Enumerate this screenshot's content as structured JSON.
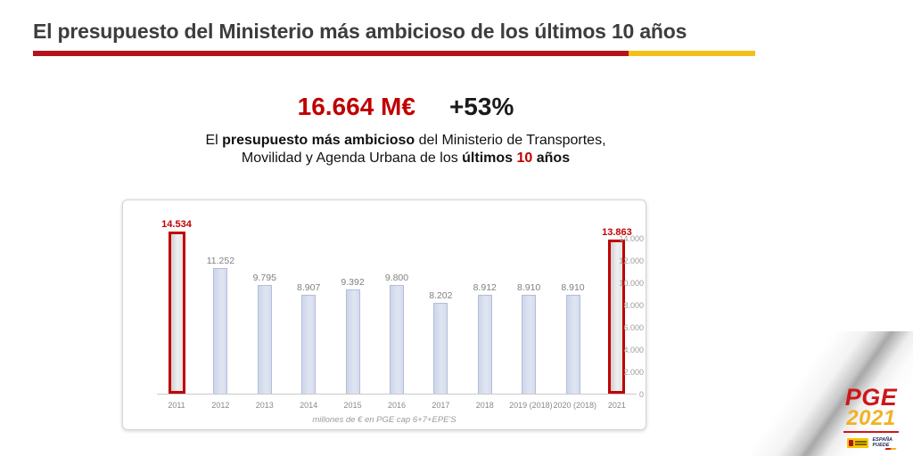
{
  "slide": {
    "title": "El presupuesto del Ministerio más ambicioso de los últimos 10 años",
    "accent_red": "#b5121b",
    "accent_yellow": "#f2c118"
  },
  "headline": {
    "amount": "16.664 M€",
    "delta": "+53%"
  },
  "subtitle": {
    "l1_normal1": "El ",
    "l1_bold": "presupuesto más ambicioso",
    "l1_normal2": " del Ministerio de Transportes,",
    "l2_normal1": "Movilidad y Agenda Urbana de los ",
    "l2_bold1": "últimos ",
    "l2_red": "10",
    "l2_bold2": " años"
  },
  "chart_data": {
    "type": "bar",
    "categories": [
      "2011",
      "2012",
      "2013",
      "2014",
      "2015",
      "2016",
      "2017",
      "2018",
      "2019 (2018)",
      "2020 (2018)",
      "2021"
    ],
    "values": [
      14534,
      11252,
      9795,
      8907,
      9392,
      9800,
      8202,
      8912,
      8910,
      8910,
      13863
    ],
    "labels": [
      "14.534",
      "11.252",
      "9.795",
      "8.907",
      "9.392",
      "9.800",
      "8.202",
      "8.912",
      "8.910",
      "8.910",
      "13.863"
    ],
    "highlighted": [
      0,
      10
    ],
    "title": "",
    "xlabel": "",
    "ylabel": "",
    "footnote": "millones de € en PGE cap 6+7+EPE'S",
    "ylim": [
      0,
      14000
    ],
    "yticks": [
      0,
      2000,
      4000,
      6000,
      8000,
      10000,
      12000,
      14000
    ],
    "ytick_labels": [
      "0",
      "2.000",
      "4.000",
      "6.000",
      "8.000",
      "10.000",
      "12.000",
      "14.000"
    ],
    "grid": false,
    "legend": false,
    "bar_color": "#cdd6ea",
    "bar_border": "#b3bdd6",
    "highlight_border": "#c00000",
    "highlight_fill": "#e6e6e6",
    "value_label_color": "#808080",
    "highlight_label_color": "#c00000"
  },
  "logo": {
    "pge": "PGE",
    "year": "2021",
    "espana": "ESPAÑA",
    "puede": "PUEDE"
  }
}
